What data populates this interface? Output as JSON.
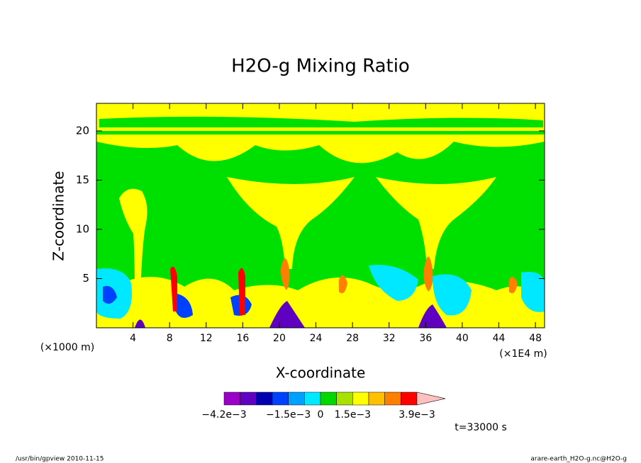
{
  "chart_data": {
    "type": "contour",
    "title": "H2O-g Mixing Ratio",
    "xlabel": "X-coordinate",
    "ylabel": "Z-coordinate",
    "x_unit_left": "(×1000 m)",
    "x_unit_right": "(×1E4 m)",
    "xlim": [
      0,
      49
    ],
    "xticks": [
      4,
      8,
      12,
      16,
      20,
      24,
      28,
      32,
      36,
      40,
      44,
      48
    ],
    "ylim": [
      0,
      22.8
    ],
    "yticks": [
      5,
      10,
      15,
      20
    ],
    "colorbar": {
      "levels": [
        -0.0042,
        -0.0036,
        -0.0029,
        -0.0022,
        -0.0015,
        -0.00075,
        0,
        0.00075,
        0.0015,
        0.0021,
        0.0027,
        0.0033,
        0.0039
      ],
      "colors": [
        "#c000c0",
        "#9a00c8",
        "#6000c0",
        "#0000b0",
        "#0040ff",
        "#00a0ff",
        "#00e8ff",
        "#00d800",
        "#a8e000",
        "#ffff00",
        "#ffc000",
        "#ff8000",
        "#ff0000",
        "#ff8080",
        "#ffc0c0"
      ],
      "ticks": [
        {
          "value": -0.0042,
          "label": "−4.2e−3"
        },
        {
          "value": -0.0015,
          "label": "−1.5e−3"
        },
        0,
        {
          "value": 0.0015,
          "label": "1.5e−3"
        },
        {
          "value": 0.0039,
          "label": "3.9e−3"
        }
      ]
    },
    "annotations": [
      "t=33000 s",
      "/usr/bin/gpview  2010-11-15",
      "arare-earth_H2O-g.nc@H2O-g"
    ]
  }
}
